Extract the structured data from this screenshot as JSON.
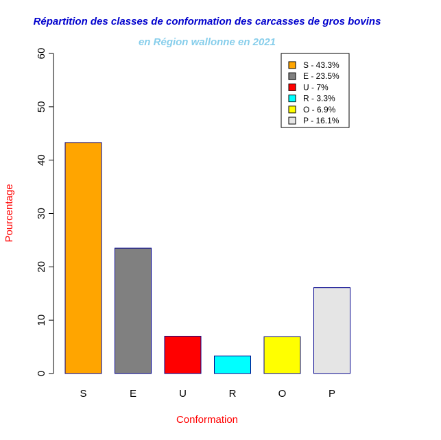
{
  "chart_data": {
    "type": "bar",
    "title": "Répartition des classes de conformation des carcasses de gros bovins",
    "subtitle": "en Région wallonne en 2021",
    "xlabel": "Conformation",
    "ylabel": "Pourcentage",
    "ylim": [
      0,
      60
    ],
    "yticks": [
      "0",
      "10",
      "20",
      "30",
      "40",
      "50",
      "60"
    ],
    "categories": [
      "S",
      "E",
      "U",
      "R",
      "O",
      "P"
    ],
    "values": [
      43.3,
      23.5,
      7,
      3.3,
      6.9,
      16.1
    ],
    "colors": [
      "#ffa500",
      "#808080",
      "#ff0000",
      "#00ffff",
      "#ffff00",
      "#e5e5e5"
    ],
    "bar_border_color": "#00008b",
    "legend": {
      "position": "top-right",
      "entries": [
        "S - 43.3%",
        "E - 23.5%",
        "U - 7%",
        "R - 3.3%",
        "O - 6.9%",
        "P - 16.1%"
      ]
    },
    "title_color": "#0000cd",
    "subtitle_color": "#87ceeb",
    "axis_label_color": "#ff0000",
    "grid": false
  }
}
